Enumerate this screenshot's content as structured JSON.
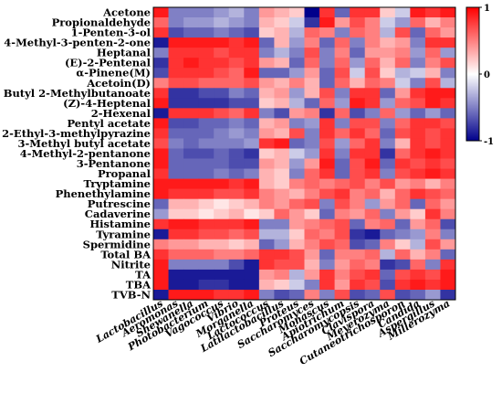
{
  "chart_data": {
    "type": "heatmap",
    "title": "",
    "xlabel": "",
    "ylabel": "",
    "rows": [
      "Acetone",
      "Propionaldehyde",
      "1-Penten-3-ol",
      "4-Methyl-3-penten-2-one",
      "Heptanal",
      "(E)-2-Pentenal",
      "α-Pinene(M)",
      "Acetoin(D)",
      "Butyl 2-Methylbutanoate",
      "(Z)-4-Heptenal",
      "2-Hexenal",
      "Pentyl acetate",
      "2-Ethyl-3-methylpyrazine",
      "3-Methyl butyl acetate",
      "4-Methyl-2-pentanone",
      "3-Pentanone",
      "Propanal",
      "Tryptamine",
      "Phenethylamine",
      "Putrescine",
      "Cadaverine",
      "Histamine",
      "Tyramine",
      "Spermidine",
      "Total BA",
      "Nitrite",
      "TA",
      "TBA",
      "TVB-N"
    ],
    "columns": [
      "Lactobacillus",
      "Aeromonas",
      "Shewanella",
      "Photobacterium",
      "Vagococcus",
      "Vibrio",
      "Morganella",
      "Lactococcus",
      "Latilactobacillus",
      "Proteus",
      "Saccharomyces",
      "Monascus",
      "Apiotrichum",
      "Saccharomycopsis",
      "Clavispora",
      "Meyerozyma",
      "Cutaneotrichosporon",
      "Candida",
      "Aspergillus",
      "Millerozyma"
    ],
    "color_scale": {
      "min": -1,
      "max": 1,
      "ticks": [
        "1",
        "0",
        "-1"
      ],
      "min_color": "#00008b",
      "mid_color": "#ffffff",
      "max_color": "#ff0000"
    },
    "values": [
      [
        0.9,
        -0.5,
        -0.5,
        -0.5,
        -0.4,
        -0.3,
        -0.5,
        0.4,
        0.3,
        0.2,
        -1.0,
        0.8,
        -0.6,
        0.8,
        0.8,
        0.2,
        -0.2,
        0.9,
        0.8,
        0.9
      ],
      [
        0.6,
        -0.5,
        -0.4,
        -0.4,
        -0.3,
        -0.4,
        -0.5,
        0.3,
        0.2,
        -0.2,
        -0.8,
        0.9,
        0.4,
        0.7,
        0.5,
        -0.2,
        -0.4,
        0.6,
        0.3,
        0.5
      ],
      [
        0.8,
        -0.7,
        -0.6,
        -0.6,
        -0.5,
        -0.6,
        -0.7,
        0.2,
        0.3,
        -0.3,
        0.6,
        0.5,
        -0.5,
        0.6,
        0.5,
        -0.3,
        0.7,
        -0.6,
        0.6,
        0.4
      ],
      [
        -0.9,
        0.9,
        0.9,
        0.9,
        0.9,
        0.8,
        0.9,
        -0.6,
        0.3,
        -0.4,
        0.5,
        -0.6,
        0.6,
        -0.5,
        0.5,
        0.3,
        0.4,
        -0.5,
        0.8,
        0.8
      ],
      [
        -0.5,
        0.8,
        0.8,
        0.8,
        0.7,
        0.8,
        0.8,
        -0.5,
        -0.3,
        -0.5,
        0.7,
        -0.5,
        0.5,
        -0.6,
        0.4,
        0.4,
        0.5,
        -0.4,
        0.6,
        -0.4
      ],
      [
        -0.8,
        0.8,
        0.9,
        0.8,
        0.8,
        0.7,
        0.8,
        0.4,
        0.3,
        -0.6,
        0.6,
        -0.5,
        0.6,
        -0.4,
        0.6,
        0.3,
        0.6,
        -0.5,
        0.5,
        0.7
      ],
      [
        -0.7,
        0.8,
        0.8,
        0.8,
        0.7,
        0.6,
        0.9,
        -0.6,
        -0.6,
        -0.4,
        0.4,
        -0.6,
        0.7,
        -0.2,
        0.7,
        0.2,
        -0.3,
        -0.2,
        0.3,
        -0.5
      ],
      [
        0.5,
        0.7,
        0.7,
        0.6,
        0.6,
        0.6,
        0.7,
        0.4,
        0.3,
        0.5,
        0.3,
        -0.6,
        0.6,
        0.3,
        0.6,
        0.5,
        -0.2,
        -0.5,
        0.7,
        -0.3
      ],
      [
        0.8,
        -0.8,
        -0.8,
        -0.7,
        -0.7,
        -0.5,
        -0.6,
        0.3,
        0.4,
        -0.4,
        0.3,
        0.7,
        -0.5,
        0.8,
        0.8,
        -0.6,
        0.4,
        0.8,
        0.9,
        0.9
      ],
      [
        0.9,
        -0.8,
        -0.8,
        -0.8,
        -0.8,
        -0.7,
        -0.7,
        0.2,
        0.3,
        -0.3,
        -0.6,
        0.6,
        -0.4,
        0.9,
        0.8,
        -0.4,
        0.6,
        0.7,
        0.9,
        0.8
      ],
      [
        -0.9,
        0.8,
        0.8,
        0.8,
        0.7,
        0.6,
        0.8,
        -0.5,
        -0.7,
        0.4,
        0.5,
        -0.8,
        0.6,
        -0.7,
        -0.5,
        0.6,
        -0.4,
        -0.6,
        -0.4,
        -0.6
      ],
      [
        0.9,
        -0.7,
        -0.7,
        -0.6,
        -0.6,
        -0.5,
        -0.6,
        0.3,
        0.4,
        -0.5,
        -0.4,
        0.8,
        -0.5,
        0.7,
        0.7,
        -0.5,
        0.6,
        0.8,
        0.8,
        0.7
      ],
      [
        0.8,
        -0.6,
        -0.6,
        -0.6,
        -0.5,
        -0.4,
        -0.5,
        0.4,
        0.3,
        0.7,
        -0.5,
        0.8,
        0.6,
        0.8,
        0.6,
        -0.6,
        0.7,
        0.8,
        0.7,
        0.8
      ],
      [
        0.7,
        -0.5,
        -0.6,
        -0.5,
        -0.5,
        -0.5,
        -0.4,
        0.8,
        0.9,
        -0.6,
        -0.5,
        0.7,
        -0.4,
        0.6,
        0.8,
        -0.5,
        0.3,
        0.8,
        0.7,
        0.8
      ],
      [
        0.9,
        -0.6,
        -0.7,
        -0.7,
        -0.6,
        -0.7,
        -0.8,
        0.2,
        0.3,
        -0.2,
        -0.4,
        0.8,
        -0.5,
        0.8,
        0.8,
        -0.8,
        0.6,
        0.8,
        0.9,
        0.8
      ],
      [
        0.9,
        -0.6,
        -0.6,
        -0.6,
        -0.6,
        -0.7,
        -0.7,
        0.4,
        0.3,
        -0.4,
        0.4,
        0.9,
        -0.6,
        0.7,
        0.9,
        -0.6,
        0.8,
        0.7,
        0.8,
        0.7
      ],
      [
        0.8,
        -0.6,
        -0.6,
        -0.6,
        -0.5,
        -0.6,
        -0.5,
        0.3,
        0.2,
        -0.5,
        0.6,
        0.8,
        -0.6,
        0.7,
        0.8,
        -0.5,
        0.7,
        0.8,
        0.9,
        0.8
      ],
      [
        0.9,
        0.9,
        0.9,
        0.9,
        0.9,
        0.8,
        0.9,
        0.3,
        0.2,
        0.5,
        0.6,
        0.5,
        0.6,
        0.7,
        0.5,
        0.7,
        0.4,
        0.5,
        0.3,
        0.5
      ],
      [
        0.9,
        0.8,
        0.8,
        0.8,
        0.7,
        0.7,
        0.8,
        0.5,
        0.4,
        0.3,
        0.5,
        0.7,
        0.8,
        0.5,
        0.6,
        0.3,
        0.6,
        0.8,
        0.7,
        0.6
      ],
      [
        -0.6,
        0.3,
        0.3,
        0.2,
        0.1,
        0.2,
        0.3,
        0.5,
        0.4,
        0.6,
        0.7,
        -0.5,
        0.7,
        0.5,
        -0.4,
        0.4,
        0.6,
        -0.6,
        0.6,
        0.4
      ],
      [
        -0.4,
        0.2,
        0.2,
        0.1,
        0.2,
        0.3,
        0.1,
        0.2,
        0.6,
        0.4,
        0.2,
        -0.6,
        0.5,
        0.4,
        0.6,
        -0.5,
        0.4,
        0.2,
        0.8,
        0.5
      ],
      [
        0.8,
        0.9,
        0.9,
        0.8,
        0.8,
        0.8,
        0.9,
        -0.5,
        -0.5,
        0.4,
        0.5,
        0.6,
        0.7,
        -0.6,
        0.5,
        0.6,
        -0.6,
        0.4,
        0.6,
        -0.7
      ],
      [
        -0.9,
        0.8,
        0.8,
        0.7,
        0.7,
        0.6,
        0.7,
        -0.3,
        -0.3,
        0.2,
        0.6,
        0.5,
        0.7,
        -0.8,
        -0.9,
        -0.6,
        -0.5,
        -0.4,
        0.5,
        -0.5
      ],
      [
        0.5,
        0.4,
        0.4,
        0.3,
        0.3,
        0.2,
        0.3,
        -0.6,
        -0.4,
        0.3,
        0.5,
        0.7,
        0.6,
        -0.7,
        -0.6,
        0.5,
        0.2,
        -0.3,
        0.7,
        0.4
      ],
      [
        0.8,
        0.6,
        0.6,
        0.6,
        0.5,
        0.5,
        0.6,
        0.8,
        0.8,
        0.7,
        0.4,
        -0.6,
        0.5,
        0.5,
        0.6,
        -0.3,
        0.6,
        0.3,
        0.5,
        -0.6
      ],
      [
        0.9,
        -0.5,
        -0.5,
        -0.5,
        -0.5,
        -0.7,
        -0.9,
        0.8,
        0.7,
        0.7,
        0.3,
        -0.5,
        0.4,
        0.6,
        0.5,
        -0.8,
        -0.7,
        0.6,
        -0.5,
        0.8
      ],
      [
        0.9,
        -0.9,
        -0.9,
        -0.9,
        -0.9,
        -0.9,
        -0.9,
        0.4,
        0.5,
        -0.3,
        0.4,
        0.8,
        0.5,
        0.7,
        0.8,
        -0.6,
        0.7,
        0.8,
        0.7,
        0.9
      ],
      [
        0.9,
        -0.9,
        -0.9,
        -0.8,
        -0.8,
        -0.9,
        -0.9,
        0.3,
        0.2,
        -0.2,
        -0.5,
        0.8,
        0.4,
        0.8,
        0.7,
        -0.7,
        0.8,
        0.9,
        0.8,
        0.9
      ],
      [
        -0.9,
        0.9,
        0.9,
        0.9,
        0.8,
        0.8,
        0.9,
        -0.5,
        -0.7,
        -0.6,
        0.5,
        -0.5,
        0.7,
        -0.7,
        -0.6,
        0.7,
        -0.7,
        -0.6,
        -0.4,
        -0.8
      ]
    ],
    "legend_placement": "right"
  }
}
